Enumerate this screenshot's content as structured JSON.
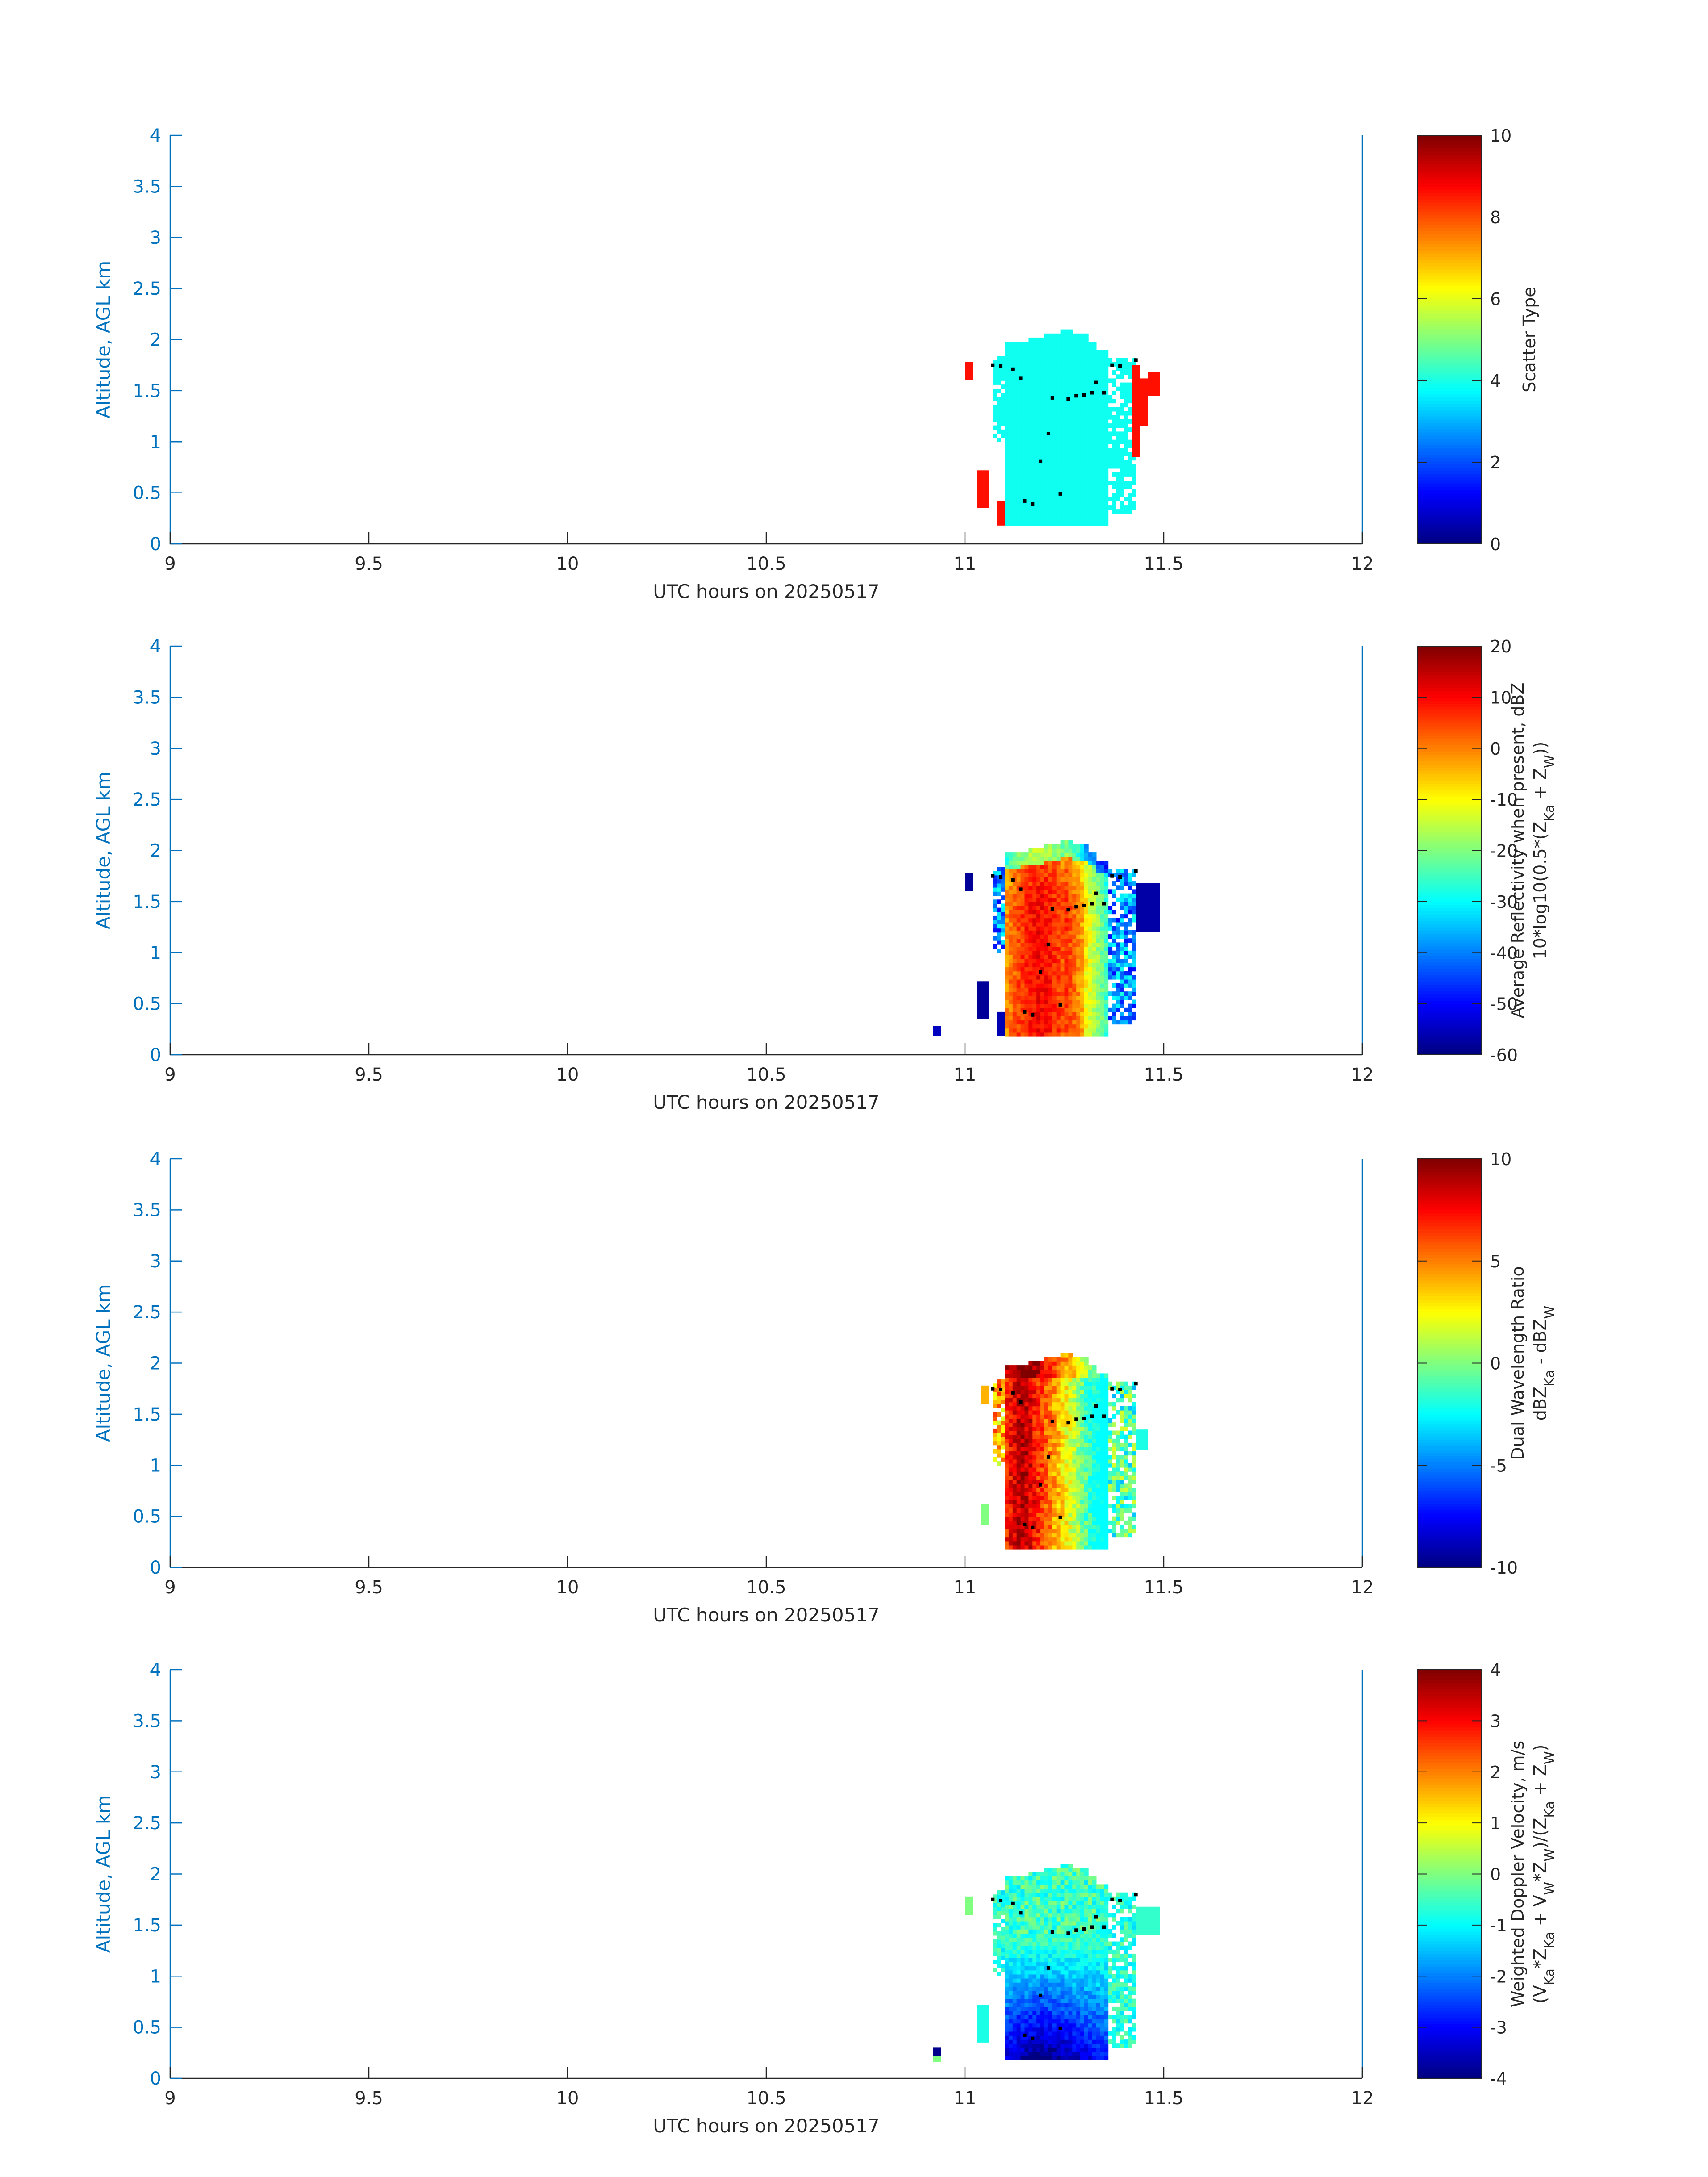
{
  "figure": {
    "background": "#ffffff",
    "axis_color": "#0072bd",
    "text_color": "#262626",
    "colormap": "jet"
  },
  "chart_data": [
    {
      "type": "heatmap",
      "id": "scatter-type",
      "xlabel": "UTC hours on 20250517",
      "ylabel": "Altitude, AGL km",
      "xlim": [
        9,
        12
      ],
      "ylim": [
        0,
        4
      ],
      "xticks": [
        9,
        9.5,
        10,
        10.5,
        11,
        11.5,
        12
      ],
      "xtick_labels": [
        "9",
        "9.5",
        "10",
        "10.5",
        "11",
        "11.5",
        "12"
      ],
      "yticks": [
        0,
        0.5,
        1,
        1.5,
        2,
        2.5,
        3,
        3.5,
        4
      ],
      "ytick_labels": [
        "0",
        "0.5",
        "1",
        "1.5",
        "2",
        "2.5",
        "3",
        "3.5",
        "4"
      ],
      "colorbar": {
        "clim": [
          0,
          10
        ],
        "ticks": [
          0,
          2,
          4,
          6,
          8,
          10
        ],
        "tick_labels": [
          "0",
          "2",
          "4",
          "6",
          "8",
          "10"
        ],
        "label_lines": [
          "Scatter Type"
        ]
      },
      "cloud_core_value": 3.9,
      "patches": [
        {
          "x0": 11.0,
          "x1": 11.02,
          "y0": 1.6,
          "y1": 1.78,
          "v": 8.6
        },
        {
          "x0": 11.03,
          "x1": 11.06,
          "y0": 0.35,
          "y1": 0.72,
          "v": 8.6
        },
        {
          "x0": 11.08,
          "x1": 11.1,
          "y0": 0.18,
          "y1": 0.42,
          "v": 8.6
        },
        {
          "x0": 11.42,
          "x1": 11.44,
          "y0": 0.85,
          "y1": 1.75,
          "v": 8.6
        },
        {
          "x0": 11.44,
          "x1": 11.46,
          "y0": 1.15,
          "y1": 1.62,
          "v": 8.6
        },
        {
          "x0": 11.46,
          "x1": 11.49,
          "y0": 1.45,
          "y1": 1.68,
          "v": 8.6
        }
      ]
    },
    {
      "type": "heatmap",
      "id": "reflectivity",
      "xlabel": "UTC hours on 20250517",
      "ylabel": "Altitude, AGL km",
      "xlim": [
        9,
        12
      ],
      "ylim": [
        0,
        4
      ],
      "xticks": [
        9,
        9.5,
        10,
        10.5,
        11,
        11.5,
        12
      ],
      "xtick_labels": [
        "9",
        "9.5",
        "10",
        "10.5",
        "11",
        "11.5",
        "12"
      ],
      "yticks": [
        0,
        0.5,
        1,
        1.5,
        2,
        2.5,
        3,
        3.5,
        4
      ],
      "ytick_labels": [
        "0",
        "0.5",
        "1",
        "1.5",
        "2",
        "2.5",
        "3",
        "3.5",
        "4"
      ],
      "colorbar": {
        "clim": [
          -60,
          20
        ],
        "ticks": [
          -60,
          -50,
          -40,
          -30,
          -20,
          -10,
          0,
          10,
          20
        ],
        "tick_labels": [
          "-60",
          "-50",
          "-40",
          "-30",
          "-20",
          "-10",
          "0",
          "10",
          "20"
        ],
        "label_lines": [
          "Average Reflectivity when present, dBZ",
          "10*log10(0.5*(Z_Ka + Z_W))"
        ]
      },
      "range": [
        -60,
        15
      ],
      "patches": [
        {
          "x0": 10.92,
          "x1": 10.94,
          "y0": 0.18,
          "y1": 0.28,
          "v": -55
        },
        {
          "x0": 11.0,
          "x1": 11.02,
          "y0": 1.6,
          "y1": 1.78,
          "v": -58
        },
        {
          "x0": 11.03,
          "x1": 11.06,
          "y0": 0.35,
          "y1": 0.72,
          "v": -58
        },
        {
          "x0": 11.08,
          "x1": 11.1,
          "y0": 0.18,
          "y1": 0.42,
          "v": -56
        },
        {
          "x0": 11.43,
          "x1": 11.49,
          "y0": 1.2,
          "y1": 1.68,
          "v": -57
        }
      ]
    },
    {
      "type": "heatmap",
      "id": "dual-wavelength-ratio",
      "xlabel": "UTC hours on 20250517",
      "ylabel": "Altitude, AGL km",
      "xlim": [
        9,
        12
      ],
      "ylim": [
        0,
        4
      ],
      "xticks": [
        9,
        9.5,
        10,
        10.5,
        11,
        11.5,
        12
      ],
      "xtick_labels": [
        "9",
        "9.5",
        "10",
        "10.5",
        "11",
        "11.5",
        "12"
      ],
      "yticks": [
        0,
        0.5,
        1,
        1.5,
        2,
        2.5,
        3,
        3.5,
        4
      ],
      "ytick_labels": [
        "0",
        "0.5",
        "1",
        "1.5",
        "2",
        "2.5",
        "3",
        "3.5",
        "4"
      ],
      "colorbar": {
        "clim": [
          -10,
          10
        ],
        "ticks": [
          -10,
          -5,
          0,
          5,
          10
        ],
        "tick_labels": [
          "-10",
          "-5",
          "0",
          "5",
          "10"
        ],
        "label_lines": [
          "Dual Wavelength Ratio",
          "dBZ_Ka - dBZ_W"
        ]
      },
      "range": [
        -2,
        10
      ],
      "patches": [
        {
          "x0": 11.04,
          "x1": 11.06,
          "y0": 0.42,
          "y1": 0.62,
          "v": 0
        },
        {
          "x0": 11.04,
          "x1": 11.06,
          "y0": 1.6,
          "y1": 1.78,
          "v": 4
        },
        {
          "x0": 11.43,
          "x1": 11.46,
          "y0": 1.15,
          "y1": 1.35,
          "v": -2
        }
      ]
    },
    {
      "type": "heatmap",
      "id": "doppler-velocity",
      "xlabel": "UTC hours on 20250517",
      "ylabel": "Altitude, AGL km",
      "xlim": [
        9,
        12
      ],
      "ylim": [
        0,
        4
      ],
      "xticks": [
        9,
        9.5,
        10,
        10.5,
        11,
        11.5,
        12
      ],
      "xtick_labels": [
        "9",
        "9.5",
        "10",
        "10.5",
        "11",
        "11.5",
        "12"
      ],
      "yticks": [
        0,
        0.5,
        1,
        1.5,
        2,
        2.5,
        3,
        3.5,
        4
      ],
      "ytick_labels": [
        "0",
        "0.5",
        "1",
        "1.5",
        "2",
        "2.5",
        "3",
        "3.5",
        "4"
      ],
      "colorbar": {
        "clim": [
          -4,
          4
        ],
        "ticks": [
          -4,
          -3,
          -2,
          -1,
          0,
          1,
          2,
          3,
          4
        ],
        "tick_labels": [
          "-4",
          "-3",
          "-2",
          "-1",
          "0",
          "1",
          "2",
          "3",
          "4"
        ],
        "label_lines": [
          "Weighted Doppler Velocity, m/s",
          "(V_Ka*Z_Ka + V_W*Z_W)/(Z_Ka + Z_W)"
        ]
      },
      "range": [
        -4,
        0.5
      ],
      "patches": [
        {
          "x0": 10.92,
          "x1": 10.94,
          "y0": 0.22,
          "y1": 0.3,
          "v": -3.9
        },
        {
          "x0": 10.92,
          "x1": 10.94,
          "y0": 0.16,
          "y1": 0.22,
          "v": 0
        },
        {
          "x0": 11.0,
          "x1": 11.02,
          "y0": 1.6,
          "y1": 1.78,
          "v": 0
        },
        {
          "x0": 11.03,
          "x1": 11.06,
          "y0": 0.35,
          "y1": 0.72,
          "v": -0.8
        },
        {
          "x0": 11.43,
          "x1": 11.49,
          "y0": 1.4,
          "y1": 1.68,
          "v": -0.6
        }
      ]
    }
  ],
  "dots": [
    [
      11.07,
      1.75
    ],
    [
      11.09,
      1.74
    ],
    [
      11.12,
      1.71
    ],
    [
      11.14,
      1.62
    ],
    [
      11.22,
      1.43
    ],
    [
      11.26,
      1.42
    ],
    [
      11.28,
      1.45
    ],
    [
      11.3,
      1.46
    ],
    [
      11.32,
      1.48
    ],
    [
      11.33,
      1.58
    ],
    [
      11.35,
      1.48
    ],
    [
      11.37,
      1.75
    ],
    [
      11.39,
      1.74
    ],
    [
      11.43,
      1.8
    ],
    [
      11.21,
      1.08
    ],
    [
      11.19,
      0.81
    ],
    [
      11.24,
      0.49
    ],
    [
      11.15,
      0.42
    ],
    [
      11.17,
      0.39
    ]
  ],
  "envelope": {
    "x0": 11.1,
    "x1": 11.36,
    "bottom": 0.18,
    "top_steps": [
      [
        11.1,
        1.95
      ],
      [
        11.13,
        1.98
      ],
      [
        11.16,
        2.0
      ],
      [
        11.2,
        2.04
      ],
      [
        11.24,
        2.08
      ],
      [
        11.27,
        2.04
      ],
      [
        11.3,
        1.98
      ],
      [
        11.33,
        1.9
      ],
      [
        11.36,
        1.84
      ]
    ]
  },
  "top_left_extension": {
    "x0": 11.07,
    "x1": 11.1,
    "y0": 1.0,
    "y1": 1.82
  },
  "right_extension": {
    "x0": 11.36,
    "x1": 11.43,
    "y0": 0.3,
    "y1": 1.82
  }
}
